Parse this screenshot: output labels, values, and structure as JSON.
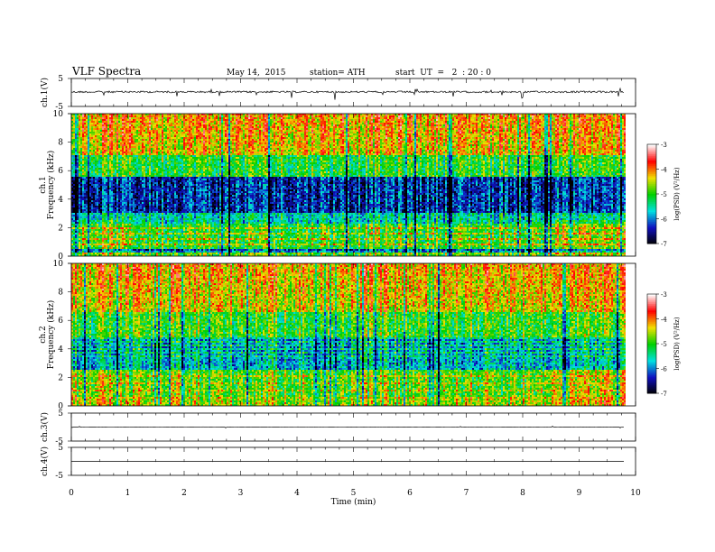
{
  "header": {
    "title": "VLF  Spectra",
    "date": "May 14,  2015",
    "station": "station= ATH",
    "start": "start  UT  =   2  : 20 : 0"
  },
  "chart_data": {
    "type": "heatmap",
    "xlabel": "Time  (min)",
    "xlim": [
      0,
      10
    ],
    "xticks": [
      "0",
      "1",
      "2",
      "3",
      "4",
      "5",
      "6",
      "7",
      "8",
      "9",
      "10"
    ],
    "data_end_min": 9.8,
    "panels": [
      {
        "id": "ch1v",
        "kind": "line",
        "ylabel": "ch.1(V)",
        "ylim": [
          -5,
          5
        ],
        "yticks": [
          "5",
          "-5"
        ],
        "baseline": 0,
        "noise": "high"
      },
      {
        "id": "ch1s",
        "kind": "spectrogram",
        "ylabel_top": "ch.1",
        "ylabel": "Frequency  (kHz)",
        "ylim": [
          0,
          10
        ],
        "yticks": [
          "0",
          "2",
          "4",
          "6",
          "8",
          "10"
        ],
        "band_change_min": [
          0.9,
          8.4
        ]
      },
      {
        "id": "ch2s",
        "kind": "spectrogram",
        "ylabel_top": "ch.2",
        "ylabel": "Frequency  (kHz)",
        "ylim": [
          0,
          10
        ],
        "yticks": [
          "0",
          "2",
          "4",
          "6",
          "8",
          "10"
        ],
        "band_change_min": [
          0.9,
          8.4
        ]
      },
      {
        "id": "ch3v",
        "kind": "line",
        "ylabel": "ch.3(V)",
        "ylim": [
          -5,
          5
        ],
        "yticks": [
          "5",
          "-5"
        ],
        "baseline": 0,
        "noise": "low"
      },
      {
        "id": "ch4v",
        "kind": "line",
        "ylabel": "ch.4(V)",
        "ylim": [
          -5,
          5
        ],
        "yticks": [
          "5",
          "-5"
        ],
        "baseline": 0,
        "noise": "none"
      }
    ],
    "colorbar": {
      "label": "log(PSD) (V²/Hz)",
      "range": [
        -7,
        -3
      ],
      "ticks": [
        "-3",
        "-4",
        "-5",
        "-6",
        "-7"
      ],
      "colors": [
        "#000000",
        "#1010c0",
        "#00e0e0",
        "#00d000",
        "#f0e000",
        "#ff0000",
        "#ffffff"
      ]
    }
  }
}
